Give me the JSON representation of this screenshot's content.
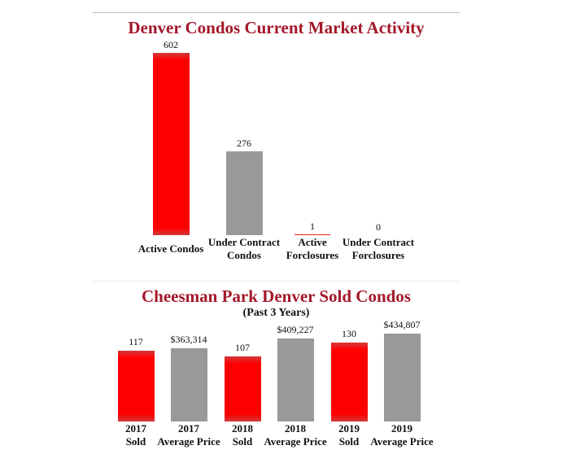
{
  "chart_data": [
    {
      "type": "bar",
      "title": "Denver Condos Current Market Activity",
      "categories": [
        [
          "Active Condos"
        ],
        [
          "Under Contract",
          "Condos"
        ],
        [
          "Active",
          "Forclosures"
        ],
        [
          "Under Contract",
          "Forclosures"
        ]
      ],
      "values": [
        602,
        276,
        1,
        0
      ],
      "value_labels": [
        "602",
        "276",
        "1",
        "0"
      ],
      "bar_colors": [
        "#ff0000",
        "#999999",
        "#e21b1b",
        "#999999"
      ],
      "ylim": [
        0,
        602
      ]
    },
    {
      "type": "bar",
      "title": "Cheesman Park Denver Sold Condos",
      "subtitle": "(Past 3 Years)",
      "categories": [
        [
          "2017",
          "Sold"
        ],
        [
          "2017",
          "Average Price"
        ],
        [
          "2018",
          "Sold"
        ],
        [
          "2018",
          "Average Price"
        ],
        [
          "2019",
          "Sold"
        ],
        [
          "2019",
          "Average Price"
        ]
      ],
      "values": [
        117,
        363314,
        107,
        409227,
        130,
        434807
      ],
      "value_labels": [
        "117",
        "$363,314",
        "107",
        "$409,227",
        "130",
        "$434,807"
      ],
      "bar_colors": [
        "#ff0000",
        "#999999",
        "#ff0000",
        "#999999",
        "#ff0000",
        "#999999"
      ]
    }
  ]
}
